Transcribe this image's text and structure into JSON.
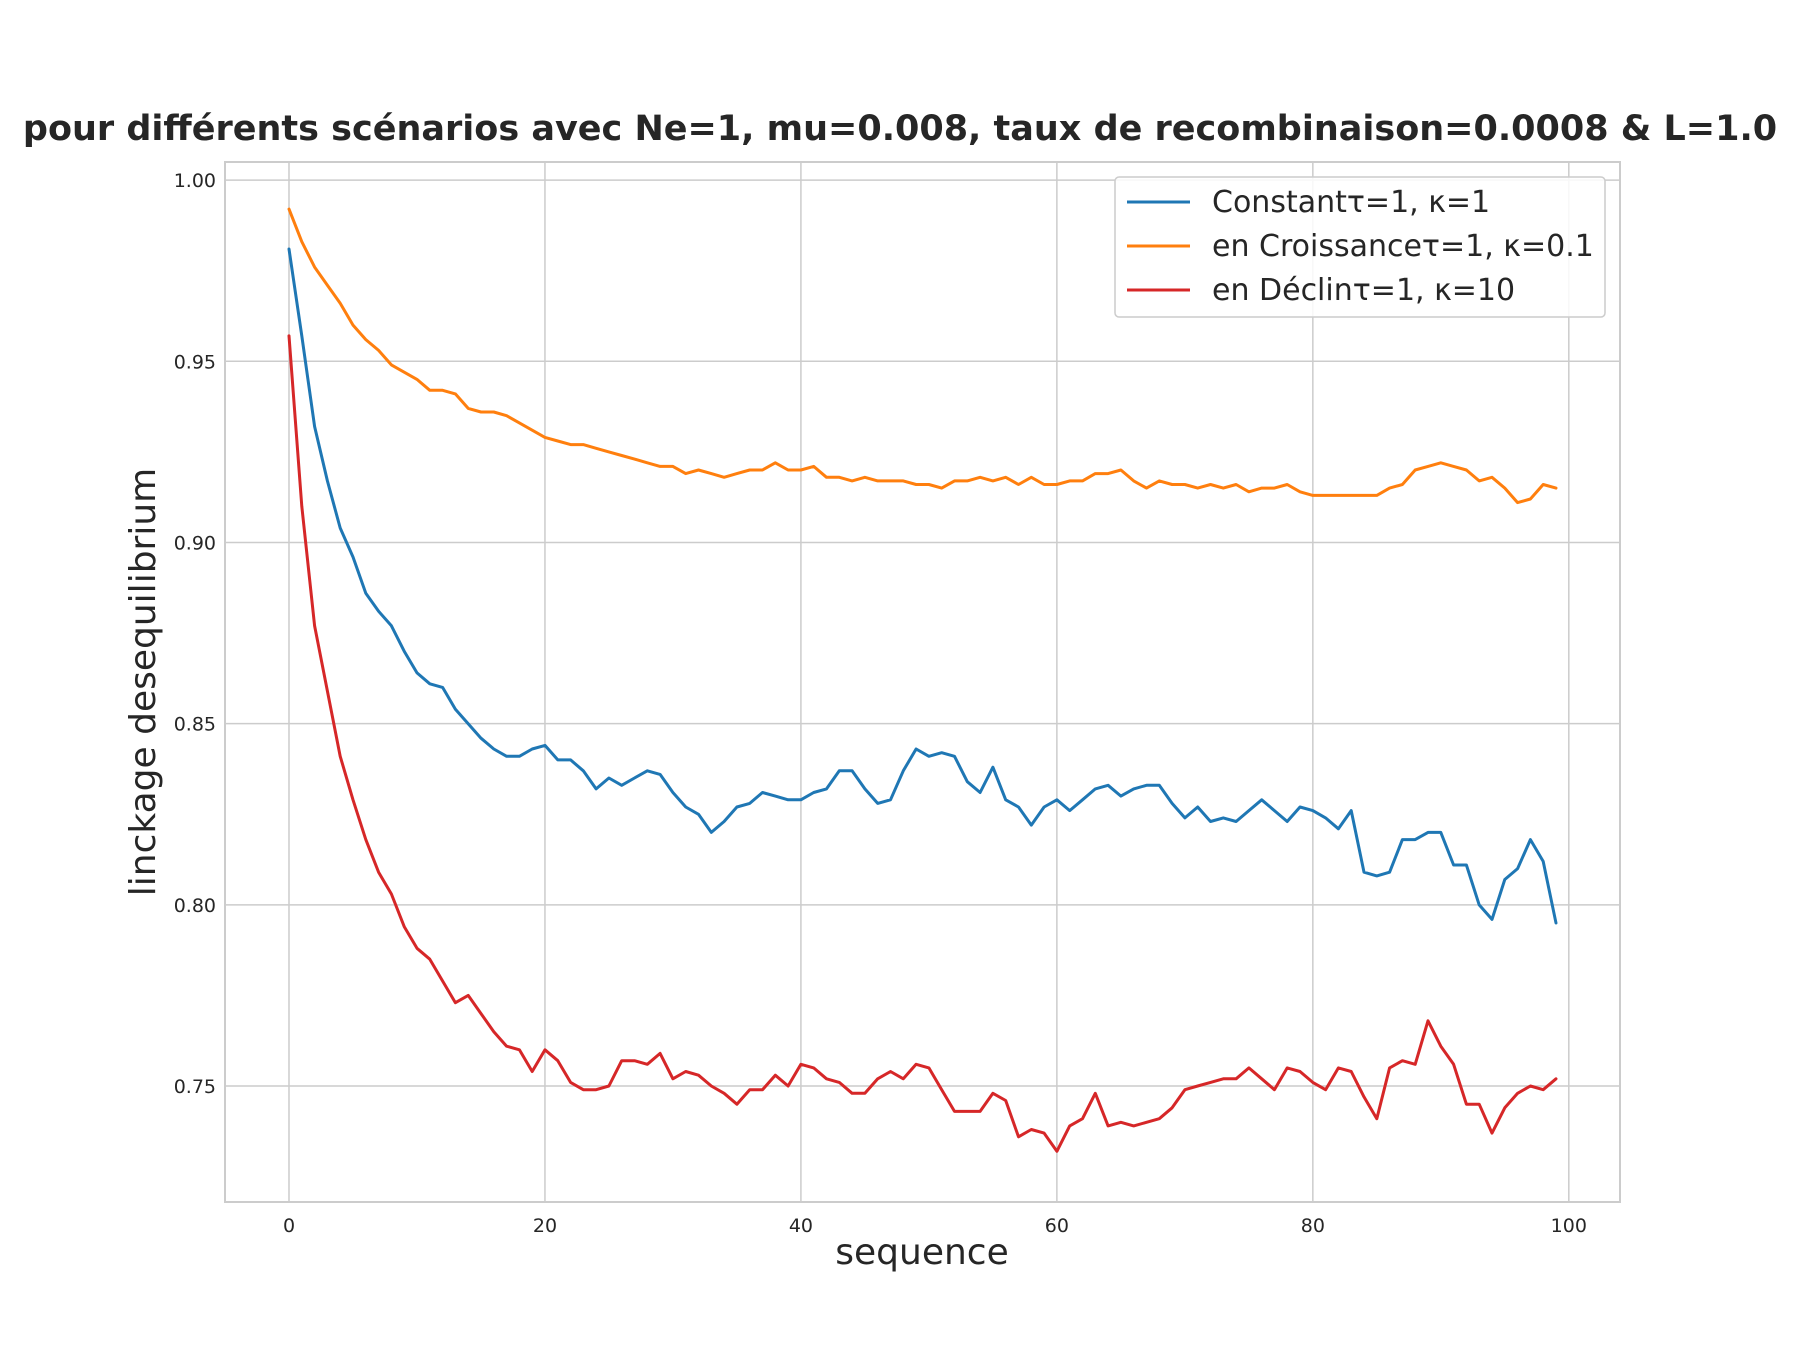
{
  "chart_data": {
    "type": "line",
    "title": "pour différents scénarios avec Ne=1, mu=0.008, taux de recombinaison=0.0008 & L=1.0",
    "xlabel": "sequence",
    "ylabel": "linckage desequilibrium",
    "xlim": [
      -5,
      104
    ],
    "ylim": [
      0.718,
      1.005
    ],
    "xticks": [
      0,
      20,
      40,
      60,
      80,
      100
    ],
    "xtick_labels": [
      "0",
      "20",
      "40",
      "60",
      "80",
      "100"
    ],
    "yticks": [
      0.75,
      0.8,
      0.85,
      0.9,
      0.95,
      1.0
    ],
    "ytick_labels": [
      "0.75",
      "0.80",
      "0.85",
      "0.90",
      "0.95",
      "1.00"
    ],
    "grid": true,
    "legend_position": "top-right",
    "x": [
      0,
      1,
      2,
      3,
      4,
      5,
      6,
      7,
      8,
      9,
      10,
      11,
      12,
      13,
      14,
      15,
      16,
      17,
      18,
      19,
      20,
      21,
      22,
      23,
      24,
      25,
      26,
      27,
      28,
      29,
      30,
      31,
      32,
      33,
      34,
      35,
      36,
      37,
      38,
      39,
      40,
      41,
      42,
      43,
      44,
      45,
      46,
      47,
      48,
      49,
      50,
      51,
      52,
      53,
      54,
      55,
      56,
      57,
      58,
      59,
      60,
      61,
      62,
      63,
      64,
      65,
      66,
      67,
      68,
      69,
      70,
      71,
      72,
      73,
      74,
      75,
      76,
      77,
      78,
      79,
      80,
      81,
      82,
      83,
      84,
      85,
      86,
      87,
      88,
      89,
      90,
      91,
      92,
      93,
      94,
      95,
      96,
      97,
      98,
      99
    ],
    "series": [
      {
        "name": "Constantτ=1, κ=1",
        "color": "#1f77b4",
        "values": [
          0.981,
          0.957,
          0.932,
          0.917,
          0.904,
          0.896,
          0.886,
          0.881,
          0.877,
          0.87,
          0.864,
          0.861,
          0.86,
          0.854,
          0.85,
          0.846,
          0.843,
          0.841,
          0.841,
          0.843,
          0.844,
          0.84,
          0.84,
          0.837,
          0.832,
          0.835,
          0.833,
          0.835,
          0.837,
          0.836,
          0.831,
          0.827,
          0.825,
          0.82,
          0.823,
          0.827,
          0.828,
          0.831,
          0.83,
          0.829,
          0.829,
          0.831,
          0.832,
          0.837,
          0.837,
          0.832,
          0.828,
          0.829,
          0.837,
          0.843,
          0.841,
          0.842,
          0.841,
          0.834,
          0.831,
          0.838,
          0.829,
          0.827,
          0.822,
          0.827,
          0.829,
          0.826,
          0.829,
          0.832,
          0.833,
          0.83,
          0.832,
          0.833,
          0.833,
          0.828,
          0.824,
          0.827,
          0.823,
          0.824,
          0.823,
          0.826,
          0.829,
          0.826,
          0.823,
          0.827,
          0.826,
          0.824,
          0.821,
          0.826,
          0.809,
          0.808,
          0.809,
          0.818,
          0.818,
          0.82,
          0.82,
          0.811,
          0.811,
          0.8,
          0.796,
          0.807,
          0.81,
          0.818,
          0.812,
          0.795
        ]
      },
      {
        "name": "en Croissanceτ=1, κ=0.1",
        "color": "#ff7f0e",
        "values": [
          0.992,
          0.983,
          0.976,
          0.971,
          0.966,
          0.96,
          0.956,
          0.953,
          0.949,
          0.947,
          0.945,
          0.942,
          0.942,
          0.941,
          0.937,
          0.936,
          0.936,
          0.935,
          0.933,
          0.931,
          0.929,
          0.928,
          0.927,
          0.927,
          0.926,
          0.925,
          0.924,
          0.923,
          0.922,
          0.921,
          0.921,
          0.919,
          0.92,
          0.919,
          0.918,
          0.919,
          0.92,
          0.92,
          0.922,
          0.92,
          0.92,
          0.921,
          0.918,
          0.918,
          0.917,
          0.918,
          0.917,
          0.917,
          0.917,
          0.916,
          0.916,
          0.915,
          0.917,
          0.917,
          0.918,
          0.917,
          0.918,
          0.916,
          0.918,
          0.916,
          0.916,
          0.917,
          0.917,
          0.919,
          0.919,
          0.92,
          0.917,
          0.915,
          0.917,
          0.916,
          0.916,
          0.915,
          0.916,
          0.915,
          0.916,
          0.914,
          0.915,
          0.915,
          0.916,
          0.914,
          0.913,
          0.913,
          0.913,
          0.913,
          0.913,
          0.913,
          0.915,
          0.916,
          0.92,
          0.921,
          0.922,
          0.921,
          0.92,
          0.917,
          0.918,
          0.915,
          0.911,
          0.912,
          0.916,
          0.915
        ]
      },
      {
        "name": "en Déclinτ=1, κ=10",
        "color": "#d62728",
        "values": [
          0.957,
          0.91,
          0.877,
          0.859,
          0.841,
          0.829,
          0.818,
          0.809,
          0.803,
          0.794,
          0.788,
          0.785,
          0.779,
          0.773,
          0.775,
          0.77,
          0.765,
          0.761,
          0.76,
          0.754,
          0.76,
          0.757,
          0.751,
          0.749,
          0.749,
          0.75,
          0.757,
          0.757,
          0.756,
          0.759,
          0.752,
          0.754,
          0.753,
          0.75,
          0.748,
          0.745,
          0.749,
          0.749,
          0.753,
          0.75,
          0.756,
          0.755,
          0.752,
          0.751,
          0.748,
          0.748,
          0.752,
          0.754,
          0.752,
          0.756,
          0.755,
          0.749,
          0.743,
          0.743,
          0.743,
          0.748,
          0.746,
          0.736,
          0.738,
          0.737,
          0.732,
          0.739,
          0.741,
          0.748,
          0.739,
          0.74,
          0.739,
          0.74,
          0.741,
          0.744,
          0.749,
          0.75,
          0.751,
          0.752,
          0.752,
          0.755,
          0.752,
          0.749,
          0.755,
          0.754,
          0.751,
          0.749,
          0.755,
          0.754,
          0.747,
          0.741,
          0.755,
          0.757,
          0.756,
          0.768,
          0.761,
          0.756,
          0.745,
          0.745,
          0.737,
          0.744,
          0.748,
          0.75,
          0.749,
          0.752
        ]
      }
    ]
  }
}
